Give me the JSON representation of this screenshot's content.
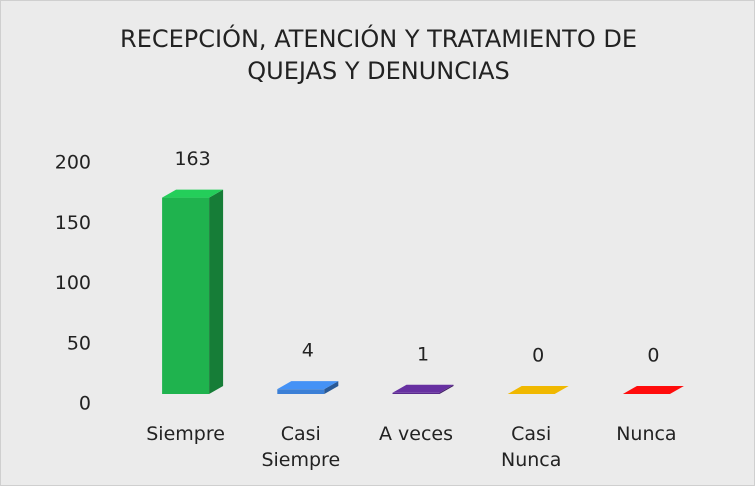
{
  "chart_data": {
    "type": "bar3d",
    "title": "RECEPCIÓN, ATENCIÓN Y TRATAMIENTO DE QUEJAS Y DENUNCIAS",
    "categories": [
      "Siempre",
      "Casi Siempre",
      "A veces",
      "Casi Nunca",
      "Nunca"
    ],
    "values": [
      163,
      4,
      1,
      0,
      0
    ],
    "colors": [
      "#1fb34e",
      "#3b7fd6",
      "#5a2a8c",
      "#d1a000",
      "#df0a0a"
    ],
    "ylim": [
      0,
      200
    ],
    "yticks": [
      0,
      50,
      100,
      150,
      200
    ],
    "grid": false
  }
}
